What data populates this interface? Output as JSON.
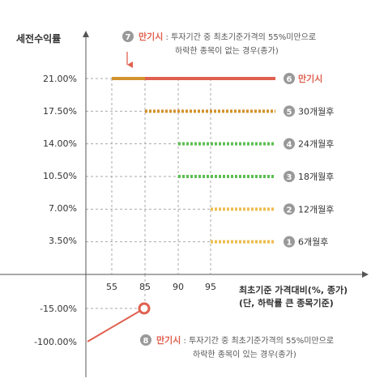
{
  "chart_data": {
    "type": "line",
    "ylabel": "세전수익률",
    "xlabel_line1": "최초기준 가격대비(%, 종가)",
    "xlabel_line2": "(단, 하락률 큰 종목기준)",
    "x_ticks": [
      55,
      85,
      90,
      95
    ],
    "y_ticks": [
      "21.00%",
      "17.50%",
      "14.00%",
      "10.50%",
      "7.00%",
      "3.50%",
      "-15.00%",
      "-100.00%"
    ],
    "series": [
      {
        "badge": "6",
        "name": "만기시",
        "color": "#e0604f",
        "style": "solid",
        "start_x": 55,
        "y": 21.0
      },
      {
        "badge": "5",
        "name": "30개월후",
        "color": "#d4922c",
        "style": "dotted",
        "start_x": 85,
        "y": 17.5
      },
      {
        "badge": "4",
        "name": "24개월후",
        "color": "#5cbf52",
        "style": "dotted",
        "start_x": 90,
        "y": 14.0
      },
      {
        "badge": "3",
        "name": "18개월후",
        "color": "#5cbf52",
        "style": "dotted",
        "start_x": 90,
        "y": 10.5
      },
      {
        "badge": "2",
        "name": "12개월후",
        "color": "#eebc4f",
        "style": "dotted",
        "start_x": 95,
        "y": 7.0
      },
      {
        "badge": "1",
        "name": "6개월후",
        "color": "#eebc4f",
        "style": "dotted",
        "start_x": 95,
        "y": 3.5
      }
    ],
    "loss_segment": {
      "color": "#e0604f",
      "from": {
        "x": 0,
        "y": -100.0
      },
      "to": {
        "x": 85,
        "y": -15.0
      }
    },
    "annotations": [
      {
        "badge": "7",
        "highlight": "만기시",
        "line1": " : 투자기간 중 최초기준가격의 55%미만으로",
        "line2": "하락한 종목이 없는 경우(종가)"
      },
      {
        "badge": "8",
        "highlight": "만기시",
        "line1": " : 투자기간 중 최초기준가격의 55%미만으로",
        "line2": "하락한 종목이 있는 경우(종가)"
      }
    ],
    "colors": {
      "badge": "#999999",
      "highlight": "#e0604f",
      "axis": "#555555",
      "grid": "#aaaaaa"
    }
  }
}
